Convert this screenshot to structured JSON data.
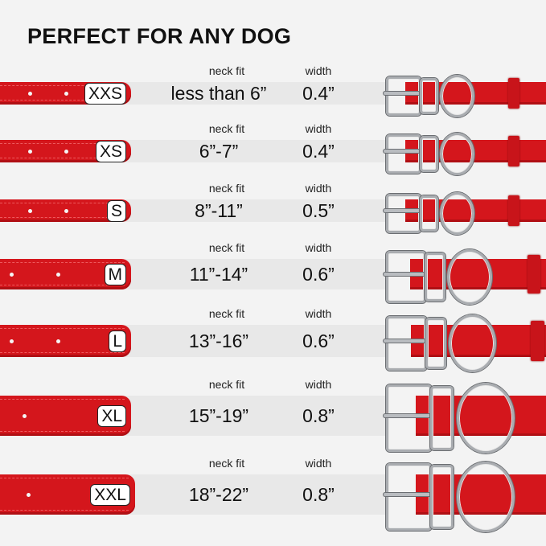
{
  "title": "PERFECT FOR ANY DOG",
  "neck_fit_label": "neck fit",
  "width_label": "width",
  "collar_color": "#d4161c",
  "sizes": [
    {
      "size": "XXS",
      "neck_fit": "less than 6”",
      "width": "0.4”"
    },
    {
      "size": "XS",
      "neck_fit": "6”-7”",
      "width": "0.4”"
    },
    {
      "size": "S",
      "neck_fit": "8”-11”",
      "width": "0.5”"
    },
    {
      "size": "M",
      "neck_fit": "11”-14”",
      "width": "0.6”"
    },
    {
      "size": "L",
      "neck_fit": "13”-16”",
      "width": "0.6”"
    },
    {
      "size": "XL",
      "neck_fit": "15”-19”",
      "width": "0.8”"
    },
    {
      "size": "XXL",
      "neck_fit": "18”-22”",
      "width": "0.8”"
    }
  ]
}
